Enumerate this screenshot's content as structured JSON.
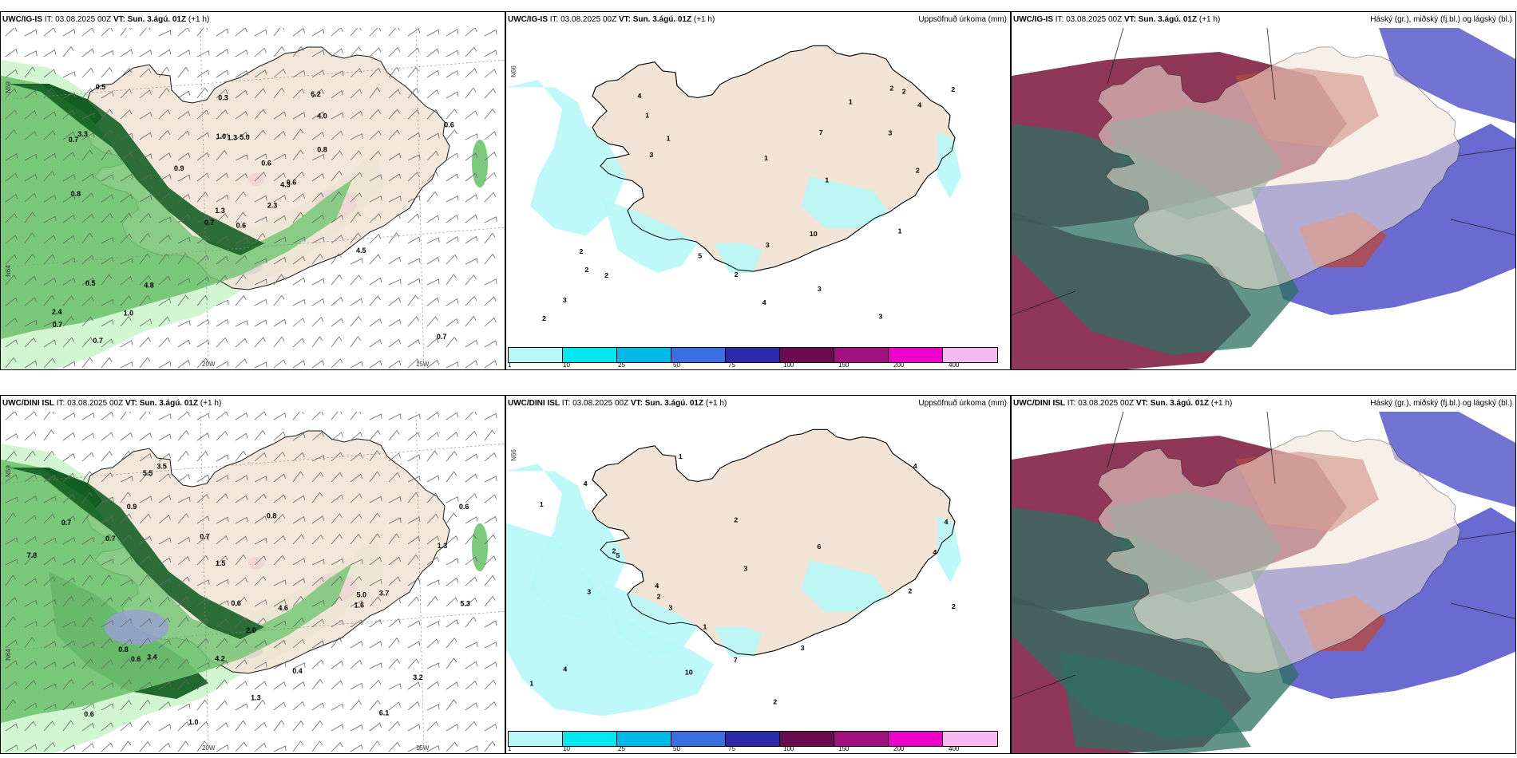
{
  "panels": [
    {
      "model": "UWC/IG-IS",
      "it_label": "IT:",
      "it": "03.08.2025 00Z",
      "vt_label": "VT:",
      "vt": "Sun. 3.ágú. 01Z",
      "lead": "(+1 h)",
      "right_title": ""
    },
    {
      "model": "UWC/IG-IS",
      "it_label": "IT:",
      "it": "03.08.2025 00Z",
      "vt_label": "VT:",
      "vt": "Sun. 3.ágú. 01Z",
      "lead": "(+1 h)",
      "right_title": "Uppsöfnuð úrkoma (mm)"
    },
    {
      "model": "UWC/IG-IS",
      "it_label": "IT:",
      "it": "03.08.2025 00Z",
      "vt_label": "VT:",
      "vt": "Sun. 3.ágú. 01Z",
      "lead": "(+1 h)",
      "right_title": "Háský (gr.), miðský (fj.bl.) og lágský (bl.)"
    },
    {
      "model": "UWC/DINI ISL",
      "it_label": "IT:",
      "it": "03.08.2025 00Z",
      "vt_label": "VT:",
      "vt": "Sun. 3.ágú. 01Z",
      "lead": "(+1 h)",
      "right_title": ""
    },
    {
      "model": "UWC/DINI ISL",
      "it_label": "IT:",
      "it": "03.08.2025 00Z",
      "vt_label": "VT:",
      "vt": "Sun. 3.ágú. 01Z",
      "lead": "(+1 h)",
      "right_title": "Uppsöfnuð úrkoma (mm)"
    },
    {
      "model": "UWC/DINI ISL",
      "it_label": "IT:",
      "it": "03.08.2025 00Z",
      "vt_label": "VT:",
      "vt": "Sun. 3.ágú. 01Z",
      "lead": "(+1 h)",
      "right_title": "Háský (gr.), miðský (fj.bl.) og lágský (bl.)"
    }
  ],
  "axes": {
    "lon1": "20W",
    "lon2": "15W",
    "lat1": "N59",
    "lat2": "N64",
    "lat3": "N66"
  },
  "colorbar": {
    "labels": [
      "1",
      "10",
      "25",
      "50",
      "75",
      "100",
      "150",
      "200",
      "400"
    ],
    "colors": [
      "#b8f7f7",
      "#00e8ee",
      "#00b8e8",
      "#3a6fe0",
      "#2a2aa8",
      "#6a0a50",
      "#a01080",
      "#ee00cc",
      "#f8b8f0"
    ]
  },
  "colors": {
    "land": "#f2e4d6",
    "wind_precip_light": "#cdf5cd",
    "wind_precip_mid": "#78c878",
    "wind_precip_dark": "#0e5a1e",
    "accum_precip": "#b8f7f7",
    "cloud_high": "#2e7060",
    "cloud_mid": "#b84a44",
    "cloud_low": "#5050c8",
    "cloud_dark": "#7a1438"
  },
  "precip_labels_top": [
    "0.6",
    "0.7",
    "1.3",
    "2.4",
    "4.3",
    "4.8",
    "6.2",
    "5.0",
    "4.0",
    "2.3",
    "0.5",
    "0.7",
    "0.8",
    "0.6",
    "0.7",
    "0.8",
    "0.7",
    "1.0",
    "0.6",
    "0.5",
    "0.9",
    "0.7",
    "1.0",
    "1.3",
    "0.6",
    "4.5",
    "3.3",
    "0.3"
  ],
  "precip_labels_bottom": [
    "0.7",
    "0.7",
    "1.5",
    "5.5",
    "3.4",
    "0.8",
    "7.8",
    "4.6",
    "3.2",
    "1.6",
    "3.5",
    "5.0",
    "6.1",
    "3.7",
    "2.0",
    "1.3",
    "0.7",
    "0.6",
    "0.8",
    "4.2",
    "5.3",
    "0.6",
    "0.9",
    "1.0",
    "1.3",
    "0.6",
    "0.6",
    "0.4"
  ],
  "accum_labels_top": [
    "2",
    "1",
    "2",
    "1",
    "3",
    "4",
    "2",
    "3",
    "3",
    "2",
    "3",
    "7",
    "3",
    "5",
    "2",
    "2",
    "1",
    "10",
    "1",
    "1",
    "3",
    "4",
    "4",
    "2",
    "2",
    "2",
    "1"
  ],
  "accum_labels_bottom": [
    "1",
    "2",
    "2",
    "2",
    "3",
    "4",
    "2",
    "4",
    "4",
    "4",
    "7",
    "4",
    "2",
    "3",
    "5",
    "6",
    "4",
    "3",
    "1",
    "2",
    "3",
    "10",
    "1",
    "1"
  ]
}
